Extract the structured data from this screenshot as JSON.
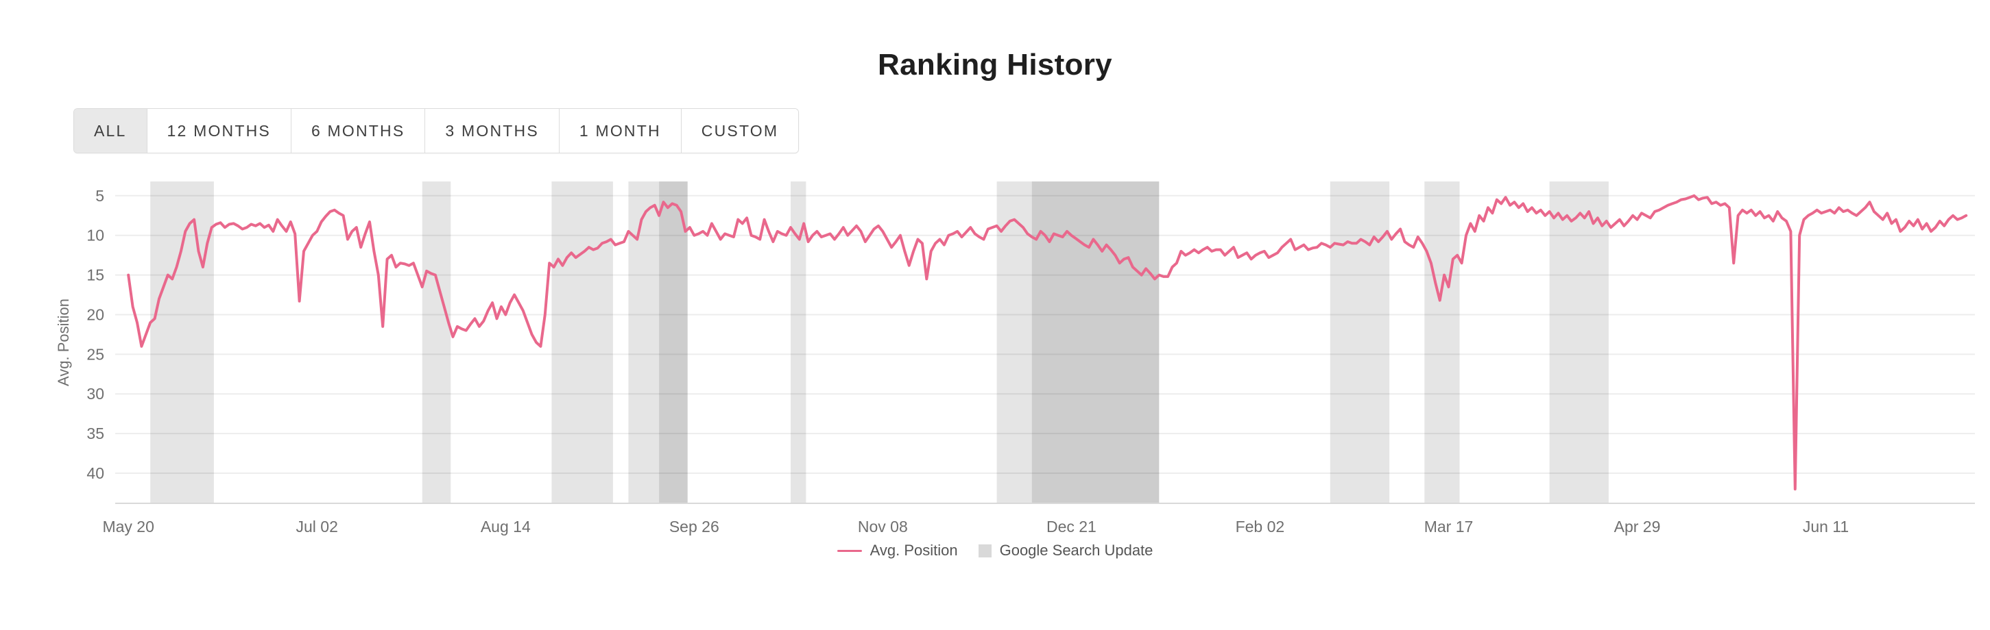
{
  "header": {
    "title": "Ranking History"
  },
  "range_selector": {
    "buttons": [
      {
        "label": "ALL",
        "active": true
      },
      {
        "label": "12 MONTHS",
        "active": false
      },
      {
        "label": "6 MONTHS",
        "active": false
      },
      {
        "label": "3 MONTHS",
        "active": false
      },
      {
        "label": "1 MONTH",
        "active": false
      },
      {
        "label": "CUSTOM",
        "active": false
      }
    ]
  },
  "chart_data": {
    "type": "line",
    "title": "Ranking History",
    "ylabel": "Avg. Position",
    "y_ticks": [
      5,
      10,
      15,
      20,
      25,
      30,
      35,
      40
    ],
    "ylim": [
      3.2,
      43.8
    ],
    "y_inverted": true,
    "grid": "horizontal",
    "x_tick_labels": [
      "May 20",
      "Jul 02",
      "Aug 14",
      "Sep 26",
      "Nov 08",
      "Dec 21",
      "Feb 02",
      "Mar 17",
      "Apr 29",
      "Jun 11"
    ],
    "x_tick_days": [
      0,
      43,
      86,
      129,
      172,
      215,
      258,
      301,
      344,
      387
    ],
    "x_day_range": [
      -3,
      421
    ],
    "line_color": "#e9688c",
    "band_fill": "rgba(0,0,0,0.10)",
    "google_search_updates": [
      {
        "start": 5,
        "end": 19.5
      },
      {
        "start": 67,
        "end": 73.5
      },
      {
        "start": 96.5,
        "end": 110.5
      },
      {
        "start": 114,
        "end": 127.5
      },
      {
        "start": 121,
        "end": 127.5
      },
      {
        "start": 151,
        "end": 154.5
      },
      {
        "start": 198,
        "end": 235
      },
      {
        "start": 206,
        "end": 235
      },
      {
        "start": 274,
        "end": 287.5
      },
      {
        "start": 295.5,
        "end": 303.5
      },
      {
        "start": 324,
        "end": 337.5
      }
    ],
    "series": [
      {
        "name": "Avg. Position",
        "color": "#e9688c",
        "x_unit": "day_index",
        "values": [
          15,
          19,
          21,
          24,
          22.5,
          21,
          20.5,
          18,
          16.5,
          15,
          15.5,
          14,
          12,
          9.5,
          8.5,
          8,
          12,
          14,
          11,
          9,
          8.6,
          8.4,
          9,
          8.6,
          8.5,
          8.8,
          9.2,
          9,
          8.6,
          8.8,
          8.5,
          9,
          8.7,
          9.5,
          8,
          8.8,
          9.5,
          8.3,
          9.8,
          18.3,
          12,
          11,
          10,
          9.5,
          8.3,
          7.6,
          7,
          6.8,
          7.2,
          7.5,
          10.5,
          9.5,
          9,
          11.5,
          9.8,
          8.3,
          12,
          15,
          21.5,
          13,
          12.5,
          14,
          13.5,
          13.6,
          13.8,
          13.5,
          15,
          16.5,
          14.5,
          14.8,
          15,
          17,
          19,
          21,
          22.8,
          21.5,
          21.8,
          22,
          21.2,
          20.5,
          21.5,
          20.8,
          19.5,
          18.5,
          20.5,
          19,
          20,
          18.5,
          17.5,
          18.5,
          19.5,
          21,
          22.5,
          23.5,
          24,
          20,
          13.5,
          14,
          13,
          13.8,
          12.8,
          12.2,
          12.8,
          12.4,
          12,
          11.5,
          11.8,
          11.6,
          11,
          10.8,
          10.5,
          11.2,
          11,
          10.8,
          9.5,
          10,
          10.5,
          8,
          7,
          6.5,
          6.2,
          7.5,
          5.8,
          6.5,
          6,
          6.2,
          7,
          9.5,
          9,
          10,
          9.8,
          9.5,
          10,
          8.5,
          9.5,
          10.5,
          9.8,
          10,
          10.2,
          8,
          8.5,
          7.8,
          10,
          10.2,
          10.5,
          8,
          9.5,
          10.8,
          9.5,
          9.8,
          10,
          9,
          9.8,
          10.5,
          8.5,
          10.8,
          10,
          9.5,
          10.2,
          10,
          9.8,
          10.5,
          9.8,
          9,
          10,
          9.4,
          8.8,
          9.5,
          10.8,
          10,
          9.2,
          8.8,
          9.5,
          10.5,
          11.5,
          10.8,
          10,
          12,
          13.8,
          12,
          10.5,
          11,
          15.5,
          12,
          11,
          10.5,
          11.2,
          10,
          9.8,
          9.5,
          10.2,
          9.6,
          9,
          9.8,
          10.2,
          10.5,
          9.2,
          9,
          8.8,
          9.5,
          8.8,
          8.2,
          8,
          8.5,
          9,
          9.8,
          10.2,
          10.5,
          9.5,
          10,
          10.8,
          9.8,
          10,
          10.2,
          9.5,
          10,
          10.4,
          10.8,
          11.2,
          11.5,
          10.5,
          11.2,
          12,
          11.2,
          11.8,
          12.5,
          13.5,
          13,
          12.8,
          14,
          14.5,
          15,
          14.2,
          14.8,
          15.5,
          15,
          15.2,
          15.2,
          14,
          13.5,
          12,
          12.5,
          12.2,
          11.8,
          12.2,
          11.8,
          11.5,
          12,
          11.8,
          11.8,
          12.5,
          12,
          11.5,
          12.8,
          12.5,
          12.2,
          13,
          12.5,
          12.2,
          12,
          12.8,
          12.5,
          12.2,
          11.5,
          11,
          10.5,
          11.8,
          11.5,
          11.2,
          11.8,
          11.6,
          11.5,
          11,
          11.2,
          11.5,
          11,
          11.1,
          11.2,
          10.8,
          11,
          11,
          10.5,
          10.8,
          11.2,
          10.2,
          10.8,
          10.2,
          9.5,
          10.5,
          9.8,
          9.2,
          10.8,
          11.2,
          11.5,
          10.2,
          11,
          12,
          13.5,
          16,
          18.2,
          15,
          16.5,
          13,
          12.5,
          13.5,
          10,
          8.5,
          9.5,
          7.5,
          8.2,
          6.5,
          7.2,
          5.5,
          6,
          5.2,
          6.2,
          5.8,
          6.5,
          6,
          7,
          6.5,
          7.2,
          6.8,
          7.5,
          7,
          7.8,
          7.2,
          8,
          7.5,
          8.2,
          7.8,
          7.2,
          7.8,
          7,
          8.5,
          7.8,
          8.8,
          8.2,
          9,
          8.5,
          8,
          8.8,
          8.2,
          7.5,
          8,
          7.2,
          7.5,
          7.8,
          7,
          6.8,
          6.5,
          6.2,
          6,
          5.8,
          5.5,
          5.4,
          5.2,
          5,
          5.5,
          5.3,
          5.2,
          6,
          5.8,
          6.2,
          6,
          6.5,
          13.5,
          7.5,
          6.8,
          7.2,
          6.8,
          7.5,
          7,
          7.8,
          7.5,
          8.2,
          7,
          7.8,
          8.2,
          9.5,
          42,
          10,
          8,
          7.5,
          7.2,
          6.8,
          7.2,
          7,
          6.8,
          7.2,
          6.5,
          7,
          6.8,
          7.2,
          7.5,
          7,
          6.5,
          5.8,
          7,
          7.5,
          8,
          7.2,
          8.5,
          8,
          9.5,
          9,
          8.2,
          8.8,
          8,
          9.2,
          8.5,
          9.5,
          9,
          8.2,
          8.8,
          8,
          7.5,
          8,
          7.8,
          7.5
        ]
      }
    ],
    "legend": [
      {
        "label": "Avg. Position",
        "swatch": "line",
        "color": "#e9688c"
      },
      {
        "label": "Google Search Update",
        "swatch": "box",
        "color": "#d9d9d9"
      }
    ]
  }
}
